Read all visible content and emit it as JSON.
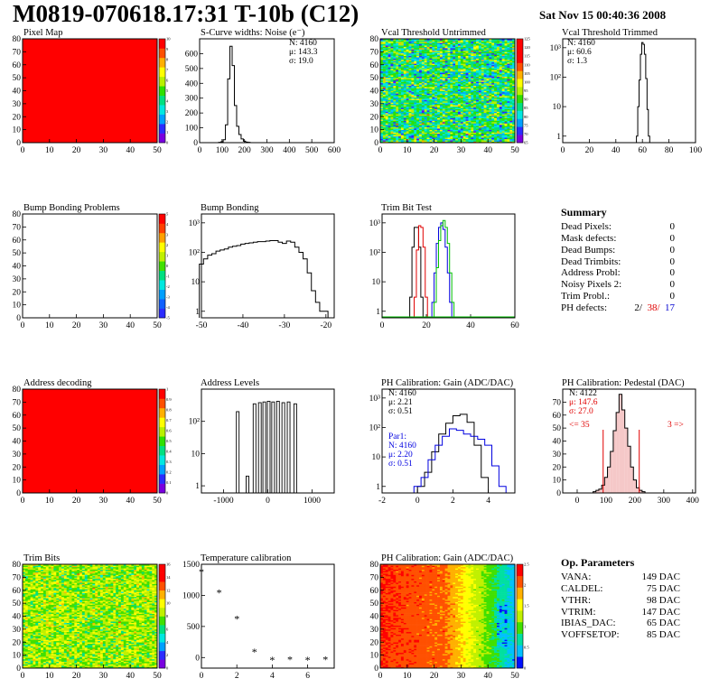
{
  "header": {
    "title": "M0819-070618.17:31 T-10b (C12)",
    "date": "Sat Nov 15 00:40:36 2008"
  },
  "palette": {
    "maps": [
      "#7a00e0",
      "#2c2cff",
      "#00a0ff",
      "#00e8e0",
      "#00e080",
      "#2ee000",
      "#b8f000",
      "#ffff00",
      "#ffb000",
      "#ff5000",
      "#ff0000"
    ],
    "gain": [
      "#0010ff",
      "#00c0ff",
      "#00e0a0",
      "#40e000",
      "#c0f000",
      "#ffff00",
      "#ffb000",
      "#ff5000",
      "#ff0000"
    ]
  },
  "charts": [
    {
      "id": "pixel-map",
      "title": "Pixel Map",
      "type": "heatmap",
      "xticks": [
        "0",
        "10",
        "20",
        "30",
        "40",
        "50"
      ],
      "yticks": [
        "0",
        "10",
        "20",
        "30",
        "40",
        "50",
        "60",
        "70",
        "80"
      ],
      "zticks": [
        "0",
        "1",
        "2",
        "3",
        "4",
        "5",
        "6",
        "7",
        "8",
        "9",
        "10"
      ]
    },
    {
      "id": "scurve",
      "title": "S-Curve widths: Noise (e⁻)",
      "type": "histogram",
      "xticks": [
        "0",
        "100",
        "200",
        "300",
        "400",
        "500",
        "600"
      ],
      "yticks": [
        "0",
        "100",
        "200",
        "300",
        "400",
        "500",
        "600"
      ],
      "stats": [
        "N: 4160",
        "μ: 143.3",
        "σ: 19.0"
      ]
    },
    {
      "id": "vcal-untrimmed",
      "title": "Vcal Threshold Untrimmed",
      "type": "heatmap",
      "xticks": [
        "0",
        "10",
        "20",
        "30",
        "40",
        "50"
      ],
      "yticks": [
        "0",
        "10",
        "20",
        "30",
        "40",
        "50",
        "60",
        "70",
        "80"
      ],
      "zticks": [
        "65",
        "70",
        "75",
        "80",
        "85",
        "90",
        "95",
        "100",
        "105",
        "110",
        "115",
        "120",
        "125"
      ]
    },
    {
      "id": "vcal-trimmed",
      "title": "Vcal Threshold Trimmed",
      "type": "histogram",
      "scale": "log",
      "xticks": [
        "0",
        "20",
        "40",
        "60",
        "80",
        "100"
      ],
      "yticks": [
        "1",
        "10",
        "10²",
        "10³"
      ],
      "stats": [
        "N: 4160",
        "μ: 60.6",
        "σ:   1.3"
      ]
    },
    {
      "id": "bump-problems",
      "title": "Bump Bonding Problems",
      "type": "heatmap",
      "xticks": [
        "0",
        "10",
        "20",
        "30",
        "40",
        "50"
      ],
      "yticks": [
        "0",
        "10",
        "20",
        "30",
        "40",
        "50",
        "60",
        "70",
        "80"
      ],
      "zticks": [
        "-5",
        "-4",
        "-3",
        "-2",
        "-1",
        "0",
        "1",
        "2",
        "3",
        "4",
        "5"
      ]
    },
    {
      "id": "bump-bonding",
      "title": "Bump Bonding",
      "type": "histogram",
      "scale": "log",
      "xticks": [
        "-50",
        "-40",
        "-30",
        "-20"
      ],
      "yticks": [
        "1",
        "10",
        "10²",
        "10³"
      ]
    },
    {
      "id": "trim-bit",
      "title": "Trim Bit Test",
      "type": "histogram",
      "scale": "log",
      "xticks": [
        "0",
        "20",
        "40",
        "60"
      ],
      "yticks": [
        "1",
        "10",
        "10²",
        "10³"
      ]
    },
    {
      "id": "address-decoding",
      "title": "Address decoding",
      "type": "heatmap",
      "xticks": [
        "0",
        "10",
        "20",
        "30",
        "40",
        "50"
      ],
      "yticks": [
        "0",
        "10",
        "20",
        "30",
        "40",
        "50",
        "60",
        "70",
        "80"
      ],
      "zticks": [
        "0",
        "0.1",
        "0.2",
        "0.3",
        "0.4",
        "0.5",
        "0.6",
        "0.7",
        "0.8",
        "0.9",
        "1"
      ]
    },
    {
      "id": "address-levels",
      "title": "Address Levels",
      "type": "histogram",
      "scale": "log",
      "xticks": [
        "-1000",
        "0",
        "1000"
      ],
      "yticks": [
        "1",
        "10",
        "10²"
      ]
    },
    {
      "id": "ph-gain",
      "title": "PH Calibration: Gain (ADC/DAC)",
      "type": "histogram",
      "scale": "log",
      "xticks": [
        "-2",
        "0",
        "2",
        "4"
      ],
      "yticks": [
        "1",
        "10",
        "10²",
        "10³"
      ],
      "stats": [
        "N: 4160",
        "μ: 2.21",
        "σ: 0.51"
      ],
      "stats2": [
        "Par1:",
        "N: 4160",
        "μ: 2.20",
        "σ: 0.51"
      ]
    },
    {
      "id": "ph-pedestal",
      "title": "PH Calibration: Pedestal (DAC)",
      "type": "histogram",
      "xticks": [
        "0",
        "100",
        "200",
        "300",
        "400"
      ],
      "yticks": [
        "0",
        "10",
        "20",
        "30",
        "40",
        "50",
        "60",
        "70"
      ],
      "stats": [
        "N: 4122"
      ],
      "stats_red": [
        "μ: 147.6",
        "σ: 27.0"
      ],
      "cut_left": "<= 35",
      "cut_right": "3 =>"
    },
    {
      "id": "trim-bits",
      "title": "Trim Bits",
      "type": "heatmap",
      "xticks": [
        "0",
        "10",
        "20",
        "30",
        "40",
        "50"
      ],
      "yticks": [
        "0",
        "10",
        "20",
        "30",
        "40",
        "50",
        "60",
        "70",
        "80"
      ],
      "zticks": [
        "0",
        "2",
        "4",
        "6",
        "8",
        "10",
        "12",
        "14",
        "16"
      ]
    },
    {
      "id": "temp-cal",
      "title": "Temperature calibration",
      "type": "scatter",
      "xticks": [
        "0",
        "2",
        "4",
        "6"
      ],
      "yticks": [
        "0",
        "500",
        "1000",
        "1500"
      ]
    },
    {
      "id": "ph-gain-map",
      "title": "PH Calibration: Gain (ADC/DAC)",
      "type": "heatmap",
      "xticks": [
        "0",
        "10",
        "20",
        "30",
        "40",
        "50"
      ],
      "yticks": [
        "0",
        "10",
        "20",
        "30",
        "40",
        "50",
        "60",
        "70",
        "80"
      ],
      "zticks": [
        "0",
        "0.5",
        "1",
        "1.5",
        "2",
        "2.5"
      ]
    }
  ],
  "chart_data": [
    {
      "type": "heatmap",
      "title": "Pixel Map",
      "xlim": [
        0,
        52
      ],
      "ylim": [
        0,
        80
      ],
      "zlim": [
        0,
        10
      ],
      "fill_value": 10
    },
    {
      "type": "bar",
      "title": "S-Curve widths: Noise (e⁻)",
      "xlim": [
        0,
        600
      ],
      "ylim": [
        0,
        700
      ],
      "x": [
        90,
        100,
        110,
        120,
        130,
        140,
        150,
        160,
        170,
        180,
        190,
        200,
        210,
        220
      ],
      "values": [
        2,
        6,
        20,
        120,
        430,
        650,
        520,
        250,
        110,
        55,
        25,
        10,
        4,
        2
      ]
    },
    {
      "type": "heatmap",
      "title": "Vcal Threshold Untrimmed",
      "xlim": [
        0,
        52
      ],
      "ylim": [
        0,
        80
      ],
      "zlim": [
        65,
        125
      ]
    },
    {
      "type": "bar",
      "title": "Vcal Threshold Trimmed",
      "xlim": [
        0,
        100
      ],
      "ylim": [
        0.6,
        2000
      ],
      "scale": "log",
      "x": [
        56,
        57,
        58,
        59,
        60,
        61,
        62,
        63,
        64,
        65
      ],
      "values": [
        1,
        10,
        80,
        600,
        1500,
        1300,
        600,
        90,
        8,
        1
      ]
    },
    {
      "type": "heatmap",
      "title": "Bump Bonding Problems",
      "xlim": [
        0,
        52
      ],
      "ylim": [
        0,
        80
      ],
      "zlim": [
        -5,
        5
      ]
    },
    {
      "type": "bar",
      "title": "Bump Bonding",
      "xlim": [
        -50,
        -18
      ],
      "ylim": [
        0.6,
        2000
      ],
      "scale": "log",
      "x": [
        -50,
        -49,
        -48,
        -47,
        -46,
        -45,
        -44,
        -43,
        -42,
        -41,
        -40,
        -39,
        -38,
        -37,
        -36,
        -35,
        -34,
        -33,
        -32,
        -31,
        -30,
        -29,
        -28,
        -27,
        -26,
        -25,
        -24,
        -23,
        -22,
        -21,
        -20
      ],
      "values": [
        40,
        60,
        80,
        90,
        110,
        120,
        130,
        150,
        160,
        170,
        190,
        200,
        210,
        220,
        230,
        230,
        240,
        250,
        250,
        220,
        200,
        240,
        220,
        150,
        100,
        60,
        20,
        5,
        2,
        1,
        1
      ]
    },
    {
      "type": "bar",
      "title": "Trim Bit Test",
      "xlim": [
        0,
        60
      ],
      "ylim": [
        0.6,
        2000
      ],
      "scale": "log",
      "series": [
        {
          "x": [
            13,
            14,
            15,
            16,
            17,
            18
          ],
          "values": [
            3,
            150,
            700,
            700,
            150,
            3
          ]
        },
        {
          "x": [
            15,
            16,
            17,
            18,
            19,
            20
          ],
          "values": [
            3,
            120,
            800,
            700,
            150,
            3
          ]
        },
        {
          "x": [
            23,
            24,
            25,
            26,
            27,
            28,
            29,
            30,
            31
          ],
          "values": [
            2,
            20,
            200,
            700,
            1000,
            600,
            150,
            20,
            2
          ]
        },
        {
          "x": [
            24,
            25,
            26,
            27,
            28,
            29,
            30,
            31,
            32
          ],
          "values": [
            2,
            30,
            250,
            800,
            1200,
            700,
            200,
            20,
            2
          ]
        }
      ]
    },
    {
      "type": "heatmap",
      "title": "Address decoding",
      "xlim": [
        0,
        52
      ],
      "ylim": [
        0,
        80
      ],
      "zlim": [
        0,
        1
      ],
      "fill_value": 1
    },
    {
      "type": "bar",
      "title": "Address Levels",
      "xlim": [
        -1500,
        1500
      ],
      "ylim": [
        0.6,
        1000
      ],
      "scale": "log",
      "x": [
        -680,
        -460,
        -300,
        -180,
        -80,
        20,
        120,
        230,
        350,
        470,
        620
      ],
      "values": [
        200,
        2,
        350,
        380,
        400,
        420,
        400,
        420,
        380,
        400,
        350
      ]
    },
    {
      "type": "bar",
      "title": "PH Calibration: Gain (ADC/DAC)",
      "xlim": [
        -2,
        5.5
      ],
      "ylim": [
        0.6,
        2000
      ],
      "scale": "log",
      "series": [
        {
          "x": [
            0.2,
            0.6,
            1.0,
            1.4,
            1.8,
            2.2,
            2.6,
            3.0,
            3.4,
            3.8
          ],
          "values": [
            1,
            3,
            15,
            60,
            140,
            250,
            280,
            150,
            25,
            2
          ]
        },
        {
          "x": [
            0.0,
            0.4,
            0.8,
            1.2,
            1.6,
            2.0,
            2.4,
            2.8,
            3.2,
            3.6,
            4.0,
            4.4,
            4.8
          ],
          "values": [
            1,
            2,
            8,
            25,
            50,
            90,
            80,
            60,
            50,
            40,
            25,
            5,
            1
          ]
        }
      ]
    },
    {
      "type": "bar",
      "title": "PH Calibration: Pedestal (DAC)",
      "xlim": [
        -50,
        410
      ],
      "ylim": [
        0,
        80
      ],
      "x": [
        60,
        70,
        80,
        90,
        100,
        110,
        120,
        130,
        140,
        150,
        160,
        170,
        180,
        190,
        200,
        210,
        220,
        230
      ],
      "values": [
        1,
        2,
        3,
        6,
        12,
        20,
        32,
        48,
        62,
        76,
        64,
        50,
        36,
        20,
        10,
        4,
        2,
        1
      ],
      "cut_lines": [
        90,
        215
      ]
    },
    {
      "type": "heatmap",
      "title": "Trim Bits",
      "xlim": [
        0,
        52
      ],
      "ylim": [
        0,
        80
      ],
      "zlim": [
        0,
        16
      ]
    },
    {
      "type": "scatter",
      "title": "Temperature calibration",
      "xlim": [
        0,
        7.5
      ],
      "ylim": [
        -170,
        1500
      ],
      "x": [
        0,
        1,
        2,
        3,
        4,
        5,
        6,
        7
      ],
      "y": [
        1380,
        1040,
        620,
        90,
        -40,
        -30,
        -40,
        -30
      ]
    },
    {
      "type": "heatmap",
      "title": "PH Calibration: Gain (ADC/DAC)",
      "xlim": [
        0,
        52
      ],
      "ylim": [
        0,
        80
      ],
      "zlim": [
        0,
        2.7
      ]
    }
  ],
  "summary": {
    "title": "Summary",
    "rows": [
      {
        "label": "Dead Pixels:",
        "value": "0"
      },
      {
        "label": "Mask defects:",
        "value": "0"
      },
      {
        "label": "Dead Bumps:",
        "value": "0"
      },
      {
        "label": "Dead Trimbits:",
        "value": "0"
      },
      {
        "label": "Address Probl:",
        "value": "0"
      },
      {
        "label": "Noisy Pixels 2:",
        "value": "0"
      },
      {
        "label": "Trim Probl.:",
        "value": "0"
      }
    ],
    "ph_defects": {
      "label": "PH defects:",
      "v1": "2/",
      "v2": "38/",
      "v3": "17"
    }
  },
  "op_params": {
    "title": "Op. Parameters",
    "rows": [
      {
        "label": "VANA:",
        "value": "149 DAC"
      },
      {
        "label": "CALDEL:",
        "value": "75 DAC"
      },
      {
        "label": "VTHR:",
        "value": "98 DAC"
      },
      {
        "label": "VTRIM:",
        "value": "147 DAC"
      },
      {
        "label": "IBIAS_DAC:",
        "value": "65 DAC"
      },
      {
        "label": "VOFFSETOP:",
        "value": "85 DAC"
      }
    ]
  }
}
